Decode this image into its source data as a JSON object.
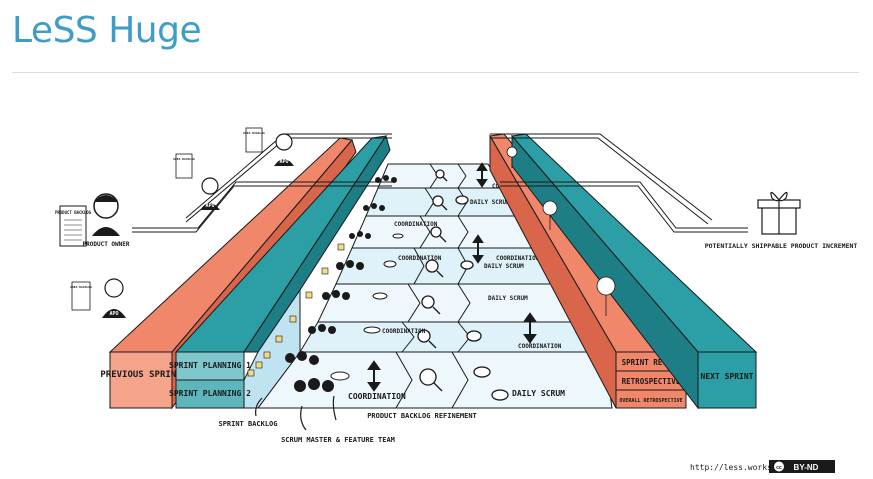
{
  "page": {
    "title": "LeSS Huge"
  },
  "diagram": {
    "roles": {
      "product_backlog": "PRODUCT BACKLOG",
      "product_owner": "PRODUCT OWNER",
      "area_backlog": "AREA BACKLOG",
      "apo": "APO"
    },
    "sprints": {
      "previous": "PREVIOUS SPRINT",
      "next": "NEXT SPRINT"
    },
    "planning": {
      "one": "SPRINT PLANNING 1",
      "two": "SPRINT PLANNING 2"
    },
    "events": {
      "coordination": "COORDINATION",
      "daily_scrum": "DAILY SCRUM",
      "sprint_review": "SPRINT REVIEW",
      "retrospective": "RETROSPECTIVE",
      "overall_retrospective": "OVERALL RETROSPECTIVE"
    },
    "labels": {
      "sprint_backlog": "SPRINT BACKLOG",
      "scrum_master_team": "SCRUM MASTER & FEATURE TEAM",
      "backlog_refinement": "PRODUCT BACKLOG REFINEMENT",
      "increment": "POTENTIALLY SHIPPABLE PRODUCT INCREMENT"
    },
    "credit": {
      "url": "http://less.works",
      "license": "BY-ND",
      "cc": "cc"
    },
    "colors": {
      "orange": "#f0876a",
      "orange_dark": "#d9664a",
      "teal": "#2c9ea5",
      "teal_dark": "#1d7e86",
      "floor": "#dff2fa",
      "floor_alt": "#c9e8f5",
      "ink": "#1a1a1a",
      "title_blue": "#3e9cc9"
    }
  }
}
